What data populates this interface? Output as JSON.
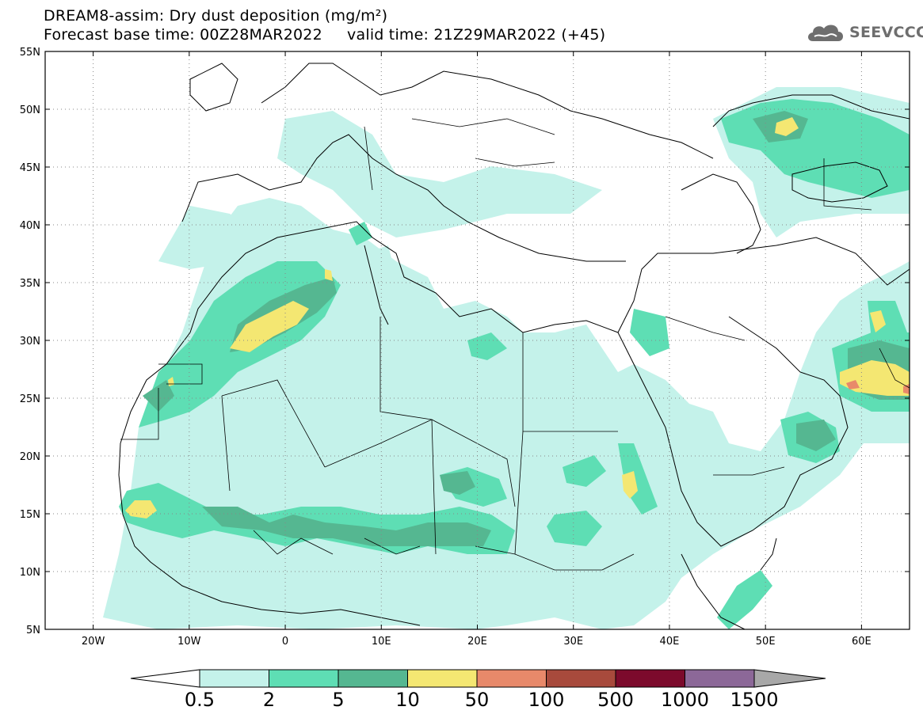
{
  "header": {
    "title_line1": "DREAM8-assim: Dry dust deposition (mg/m²)",
    "title_line2": "Forecast base time: 00Z28MAR2022     valid time: 21Z29MAR2022 (+45)",
    "logo_text": "SEEVCCC",
    "logo_icon": "cloud-icon"
  },
  "map": {
    "region": "North Africa, Middle East and Europe",
    "lon_ticks": [
      "20W",
      "10W",
      "0",
      "10E",
      "20E",
      "30E",
      "40E",
      "50E",
      "60E"
    ],
    "lat_ticks": [
      "55N",
      "50N",
      "45N",
      "40N",
      "35N",
      "30N",
      "25N",
      "20N",
      "15N",
      "10N",
      "5N"
    ],
    "grid": true,
    "grid_style": "dotted",
    "lon_range": [
      -25,
      65
    ],
    "lat_range": [
      5,
      55
    ]
  },
  "colorbar": {
    "labels": [
      "0.5",
      "2",
      "5",
      "10",
      "50",
      "100",
      "500",
      "1000",
      "1500"
    ],
    "colors": [
      "#c4f2ea",
      "#5edeb4",
      "#55b791",
      "#f4e772",
      "#e8896a",
      "#a84a3c",
      "#7c0a2c",
      "#8c6898",
      "#a8a8a8"
    ],
    "low_arrow_color": "#ffffff",
    "high_arrow_color": "#a8a8a8",
    "units": "mg/m²"
  }
}
